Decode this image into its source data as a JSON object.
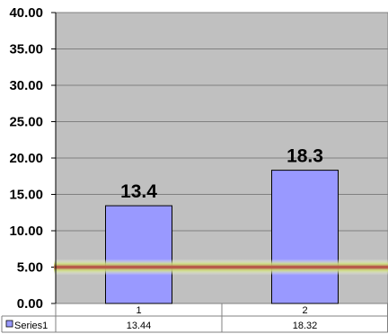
{
  "chart_data": {
    "type": "bar",
    "categories": [
      "1",
      "2"
    ],
    "series": [
      {
        "name": "Series1",
        "values": [
          13.44,
          18.32
        ],
        "color": "#9999ff"
      }
    ],
    "data_labels": [
      "13.4",
      "18.3"
    ],
    "table_values": [
      "13.44",
      "18.32"
    ],
    "y_ticks": [
      "0.00",
      "5.00",
      "10.00",
      "15.00",
      "20.00",
      "25.00",
      "30.00",
      "35.00",
      "40.00"
    ],
    "ylim": [
      0,
      40
    ],
    "grid": true,
    "reference_line": {
      "value": 5,
      "color": "#b85c4a",
      "glow": "#d8e890"
    },
    "plot_background": "#c0c0c0",
    "data_table": true,
    "title": "",
    "xlabel": "",
    "ylabel": ""
  }
}
